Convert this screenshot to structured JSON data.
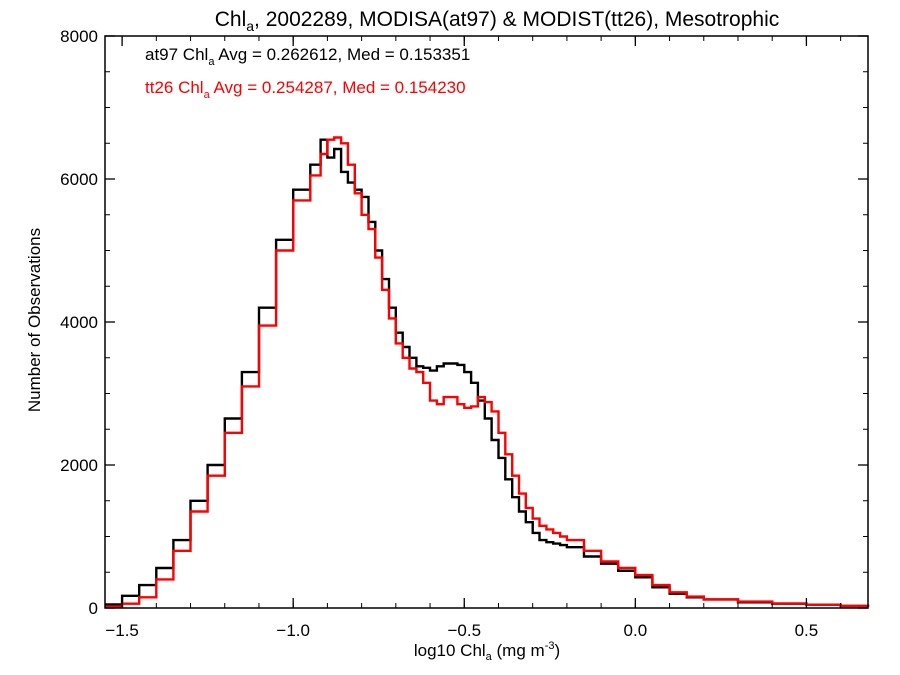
{
  "chart_data": {
    "type": "line",
    "step": true,
    "title": {
      "prefix": "Chl",
      "sub": "a",
      "rest": ", 2002289, MODISA(at97) & MODIST(tt26), Mesotrophic"
    },
    "xlabel": {
      "prefix": "log10 Chl",
      "sub": "a",
      "rest": " (mg m",
      "sup": "-3",
      "close": ")"
    },
    "ylabel": "Number of Observations",
    "xlim": [
      -1.55,
      0.68
    ],
    "ylim": [
      0,
      8000
    ],
    "x_ticks": [
      -1.5,
      -1.0,
      -0.5,
      0.0,
      0.5
    ],
    "x_tick_labels": [
      "−1.5",
      "−1.0",
      "−0.5",
      "0.0",
      "0.5"
    ],
    "y_ticks": [
      0,
      2000,
      4000,
      6000,
      8000
    ],
    "y_tick_labels": [
      "0",
      "2000",
      "4000",
      "6000",
      "8000"
    ],
    "annotations": [
      {
        "series": "at97",
        "color": "#000000",
        "parts": [
          {
            "t": "at97 Chl"
          },
          {
            "t": "a",
            "sub": true
          },
          {
            "t": " Avg = 0.262612, Med = 0.153351"
          }
        ]
      },
      {
        "series": "tt26",
        "color": "#ff0000",
        "parts": [
          {
            "t": "tt26 Chl"
          },
          {
            "t": "a",
            "sub": true
          },
          {
            "t": " Avg = 0.254287, Med = 0.154230"
          }
        ]
      }
    ],
    "series": [
      {
        "name": "at97",
        "color": "#000000",
        "x": [
          -1.55,
          -1.5,
          -1.45,
          -1.4,
          -1.35,
          -1.3,
          -1.25,
          -1.2,
          -1.15,
          -1.1,
          -1.05,
          -1.0,
          -0.95,
          -0.92,
          -0.9,
          -0.88,
          -0.86,
          -0.84,
          -0.82,
          -0.8,
          -0.78,
          -0.76,
          -0.74,
          -0.72,
          -0.7,
          -0.68,
          -0.66,
          -0.64,
          -0.62,
          -0.6,
          -0.58,
          -0.56,
          -0.54,
          -0.52,
          -0.5,
          -0.48,
          -0.46,
          -0.44,
          -0.42,
          -0.4,
          -0.38,
          -0.36,
          -0.34,
          -0.32,
          -0.3,
          -0.28,
          -0.26,
          -0.24,
          -0.22,
          -0.2,
          -0.15,
          -0.1,
          -0.05,
          0.0,
          0.05,
          0.1,
          0.15,
          0.2,
          0.3,
          0.4,
          0.5,
          0.6,
          0.68
        ],
        "values": [
          50,
          170,
          320,
          560,
          950,
          1500,
          2000,
          2650,
          3300,
          4200,
          5150,
          5850,
          6200,
          6550,
          6300,
          6420,
          6100,
          5950,
          5850,
          5750,
          5400,
          5000,
          4600,
          4200,
          3850,
          3650,
          3500,
          3380,
          3360,
          3320,
          3380,
          3420,
          3420,
          3400,
          3300,
          3150,
          2900,
          2650,
          2350,
          2100,
          1800,
          1550,
          1350,
          1200,
          1050,
          950,
          920,
          900,
          880,
          850,
          720,
          620,
          520,
          430,
          290,
          200,
          150,
          120,
          80,
          60,
          45,
          30,
          20
        ]
      },
      {
        "name": "tt26",
        "color": "#ff0000",
        "x": [
          -1.55,
          -1.5,
          -1.45,
          -1.4,
          -1.35,
          -1.3,
          -1.25,
          -1.2,
          -1.15,
          -1.1,
          -1.05,
          -1.0,
          -0.95,
          -0.92,
          -0.9,
          -0.88,
          -0.86,
          -0.84,
          -0.82,
          -0.8,
          -0.78,
          -0.76,
          -0.74,
          -0.72,
          -0.7,
          -0.68,
          -0.66,
          -0.64,
          -0.62,
          -0.6,
          -0.58,
          -0.56,
          -0.54,
          -0.52,
          -0.5,
          -0.48,
          -0.46,
          -0.44,
          -0.42,
          -0.4,
          -0.38,
          -0.36,
          -0.34,
          -0.32,
          -0.3,
          -0.28,
          -0.26,
          -0.24,
          -0.22,
          -0.2,
          -0.15,
          -0.1,
          -0.05,
          0.0,
          0.05,
          0.1,
          0.15,
          0.2,
          0.3,
          0.4,
          0.5,
          0.6,
          0.68
        ],
        "values": [
          20,
          60,
          150,
          400,
          800,
          1350,
          1850,
          2450,
          3100,
          3950,
          5000,
          5700,
          6050,
          6350,
          6550,
          6580,
          6500,
          6200,
          5800,
          5500,
          5300,
          4900,
          4450,
          4050,
          3700,
          3500,
          3350,
          3300,
          3150,
          2900,
          2850,
          2950,
          2950,
          2850,
          2800,
          2820,
          2950,
          2880,
          2750,
          2450,
          2150,
          1850,
          1600,
          1400,
          1250,
          1150,
          1100,
          1050,
          1000,
          950,
          800,
          650,
          560,
          460,
          320,
          220,
          160,
          120,
          90,
          65,
          45,
          30,
          20
        ]
      }
    ]
  }
}
